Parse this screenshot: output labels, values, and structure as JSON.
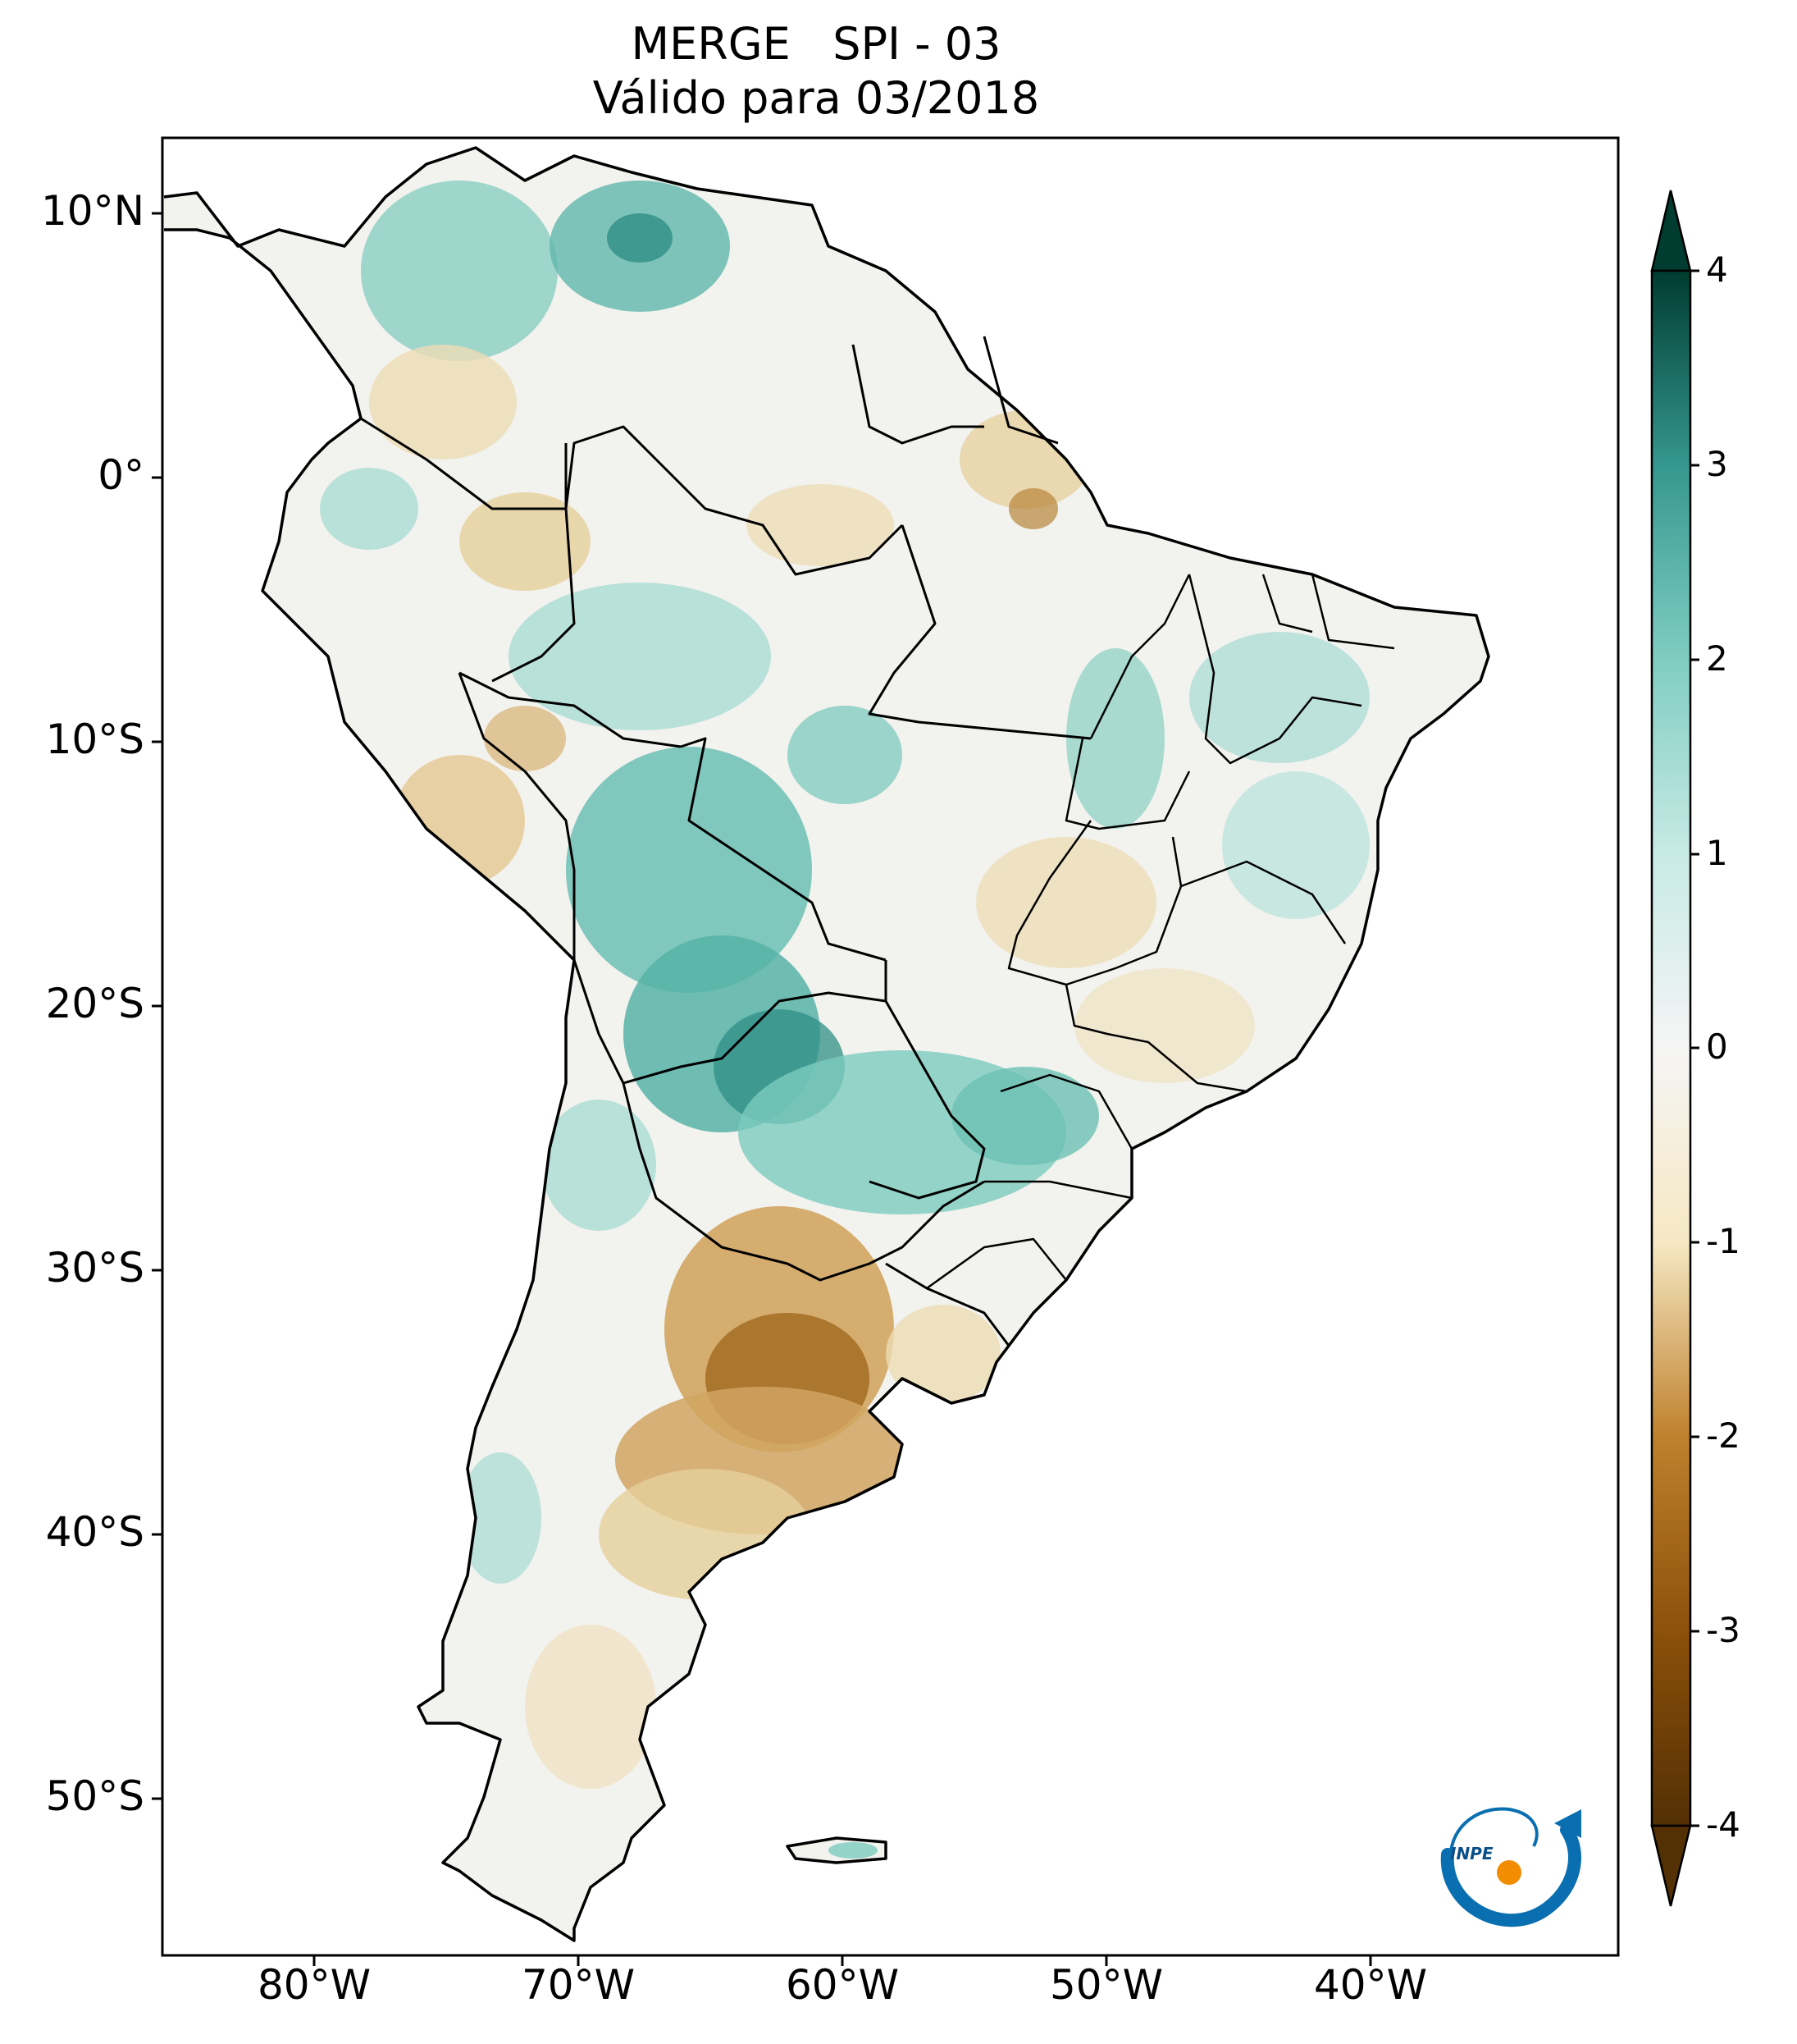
{
  "title": "MERGE   SPI - 03",
  "subtitle": "Válido para 03/2018",
  "map": {
    "region": "South America",
    "lat_labels": [
      "10°N",
      "0°",
      "10°S",
      "20°S",
      "30°S",
      "40°S",
      "50°S"
    ],
    "lon_labels": [
      "80°W",
      "70°W",
      "60°W",
      "50°W",
      "40°W"
    ],
    "extent": {
      "lon": [
        -85,
        -30
      ],
      "lat": [
        -56,
        13
      ]
    }
  },
  "colorbar": {
    "ticks": [
      "4",
      "3",
      "2",
      "1",
      "0",
      "-1",
      "-2",
      "-3",
      "-4"
    ],
    "range": [
      -4,
      4
    ],
    "colormap": "BrBG",
    "colors": {
      "dry_extreme": "#543005",
      "dry": "#bf812d",
      "dry_light": "#f6e8c3",
      "neutral": "#f5f5f5",
      "wet_light": "#c7eae5",
      "wet": "#35978f",
      "wet_extreme": "#003c30"
    }
  },
  "logo": {
    "text": "INPE"
  }
}
